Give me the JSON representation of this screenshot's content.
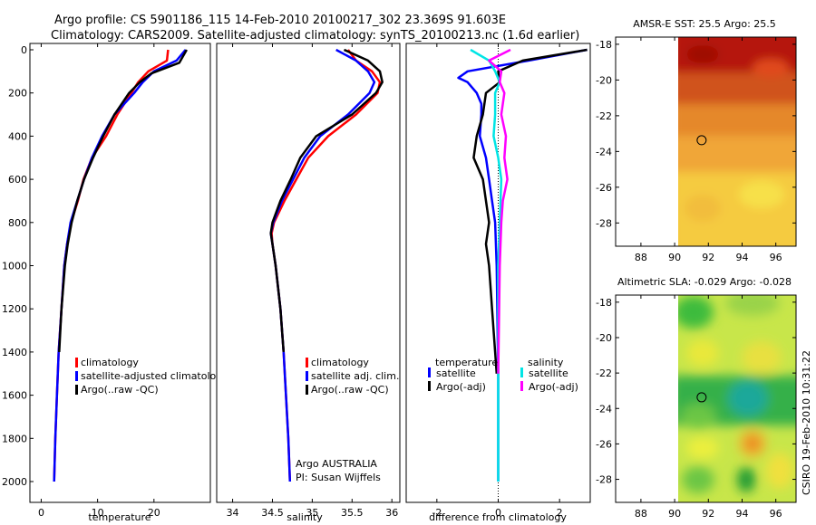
{
  "title_line1": "Argo profile: CS 5901186_115 14-Feb-2010 20100217_302 23.369S 91.603E",
  "title_line2": "Climatology: CARS2009. Satellite-adjusted climatology: synTS_20100213.nc (1.6d earlier)",
  "side_label": "CSIRO 19-Feb-2010 10:31:22",
  "colors": {
    "red": "#ff0000",
    "blue": "#0000ff",
    "black": "#000000",
    "cyan": "#00e5e5",
    "magenta": "#ff00ff"
  },
  "chart_data": [
    {
      "type": "line",
      "id": "temperature",
      "xlabel": "temperature",
      "ylabel": "",
      "xlim": [
        -2,
        30
      ],
      "ylim": [
        2060,
        0
      ],
      "xticks": [
        0,
        10,
        20
      ],
      "yticks": [
        0,
        200,
        400,
        600,
        800,
        1000,
        1200,
        1400,
        1600,
        1800,
        2000
      ],
      "legend": [
        "climatology",
        "satellite-adjusted climatolo",
        "Argo(..raw -QC)"
      ],
      "series": [
        {
          "name": "climatology",
          "color": "red",
          "depth": [
            0,
            50,
            100,
            150,
            200,
            300,
            400,
            500,
            600,
            700,
            800,
            900,
            1000,
            1200,
            1400,
            1600,
            1800,
            2000
          ],
          "values": [
            22.5,
            22.3,
            19.0,
            17.2,
            16.0,
            13.5,
            11.5,
            9.0,
            7.5,
            6.5,
            5.3,
            4.6,
            4.1,
            3.6,
            3.1,
            2.8,
            2.5,
            2.3
          ]
        },
        {
          "name": "satellite",
          "color": "blue",
          "depth": [
            0,
            50,
            100,
            150,
            200,
            300,
            400,
            500,
            600,
            700,
            800,
            900,
            1000,
            1200,
            1400,
            1600,
            1800,
            2000
          ],
          "values": [
            25.6,
            24.0,
            20.0,
            18.0,
            16.5,
            13.0,
            10.8,
            9.0,
            7.6,
            6.4,
            5.2,
            4.6,
            4.1,
            3.6,
            3.1,
            2.8,
            2.5,
            2.3
          ]
        },
        {
          "name": "argo",
          "color": "black",
          "depth": [
            0,
            60,
            110,
            150,
            200,
            300,
            400,
            500,
            600,
            700,
            800,
            900,
            1000,
            1200,
            1400
          ],
          "values": [
            25.8,
            24.5,
            19.5,
            17.5,
            15.6,
            13.0,
            11.0,
            9.2,
            7.6,
            6.4,
            5.4,
            4.7,
            4.2,
            3.6,
            3.2
          ]
        }
      ]
    },
    {
      "type": "line",
      "id": "salinity",
      "xlabel": "salinity",
      "xlim": [
        33.8,
        36.1
      ],
      "ylim": [
        2060,
        0
      ],
      "xticks": [
        34,
        34.5,
        35,
        35.5,
        36
      ],
      "legend": [
        "climatology",
        "satellite adj. clim.",
        "Argo(..raw -QC)"
      ],
      "note": [
        "Argo AUSTRALIA",
        "PI: Susan Wijffels"
      ],
      "series": [
        {
          "name": "climatology",
          "color": "red",
          "depth": [
            0,
            50,
            100,
            150,
            200,
            300,
            400,
            500,
            600,
            700,
            800,
            850,
            900,
            1000,
            1200,
            1400,
            1600,
            1800,
            2000
          ],
          "values": [
            35.45,
            35.55,
            35.75,
            35.85,
            35.82,
            35.55,
            35.2,
            34.95,
            34.8,
            34.65,
            34.52,
            34.49,
            34.5,
            34.54,
            34.6,
            34.64,
            34.67,
            34.7,
            34.72
          ]
        },
        {
          "name": "satellite",
          "color": "blue",
          "depth": [
            0,
            50,
            100,
            150,
            200,
            300,
            400,
            500,
            600,
            700,
            800,
            850,
            900,
            1000,
            1200,
            1400,
            1600,
            1800,
            2000
          ],
          "values": [
            35.3,
            35.55,
            35.7,
            35.78,
            35.72,
            35.45,
            35.1,
            34.9,
            34.76,
            34.62,
            34.51,
            34.48,
            34.5,
            34.54,
            34.6,
            34.64,
            34.67,
            34.7,
            34.72
          ]
        },
        {
          "name": "argo",
          "color": "black",
          "depth": [
            0,
            50,
            100,
            150,
            200,
            300,
            400,
            500,
            600,
            700,
            800,
            850,
            900,
            1000,
            1200,
            1400
          ],
          "values": [
            35.4,
            35.7,
            35.85,
            35.88,
            35.8,
            35.5,
            35.05,
            34.85,
            34.73,
            34.6,
            34.5,
            34.48,
            34.5,
            34.54,
            34.6,
            34.64
          ]
        }
      ]
    },
    {
      "type": "line",
      "id": "difference",
      "xlabel": "difference from climatology",
      "xlim": [
        -3,
        3
      ],
      "ylim": [
        2060,
        0
      ],
      "xticks": [
        -2,
        0,
        2
      ],
      "legend_temperature": {
        "title": "temperature",
        "items": [
          "satellite",
          "Argo(-adj)"
        ]
      },
      "legend_salinity": {
        "title": "salinity",
        "items": [
          "satellite",
          "Argo(-adj)"
        ]
      },
      "series": [
        {
          "name": "temperature satellite",
          "color": "blue",
          "depth": [
            0,
            50,
            100,
            130,
            150,
            200,
            250,
            300,
            400,
            500,
            600,
            700,
            800,
            1000,
            1500,
            2000
          ],
          "values": [
            2.9,
            1.0,
            -1.0,
            -1.3,
            -1.0,
            -0.7,
            -0.55,
            -0.55,
            -0.6,
            -0.4,
            -0.3,
            -0.2,
            -0.1,
            -0.05,
            0,
            0
          ]
        },
        {
          "name": "temperature argo",
          "color": "black",
          "depth": [
            0,
            50,
            100,
            150,
            200,
            300,
            400,
            500,
            600,
            700,
            800,
            900,
            1000,
            1200,
            1400,
            1500
          ],
          "values": [
            2.9,
            0.8,
            0,
            0.05,
            -0.4,
            -0.5,
            -0.7,
            -0.8,
            -0.5,
            -0.4,
            -0.3,
            -0.4,
            -0.3,
            -0.2,
            -0.1,
            -0.05
          ]
        },
        {
          "name": "salinity satellite",
          "color": "cyan",
          "depth": [
            0,
            50,
            100,
            150,
            200,
            300,
            400,
            500,
            600,
            800,
            1000,
            1500,
            2000
          ],
          "values": [
            -0.9,
            -0.3,
            -0.1,
            0.05,
            -0.1,
            -0.1,
            -0.15,
            0,
            0.1,
            0.05,
            0,
            0,
            0
          ]
        },
        {
          "name": "salinity argo",
          "color": "magenta",
          "depth": [
            0,
            50,
            100,
            150,
            200,
            300,
            400,
            500,
            600,
            700,
            800,
            1000,
            1500
          ],
          "values": [
            0.4,
            -0.3,
            0.1,
            0.05,
            0.2,
            0.1,
            0.25,
            0.2,
            0.3,
            0.15,
            0.1,
            0.05,
            0
          ]
        }
      ]
    },
    {
      "type": "heatmap",
      "id": "sst",
      "title": "AMSR-E SST: 25.5 Argo: 25.5",
      "xlim": [
        86.5,
        97.2
      ],
      "ylim": [
        -29.3,
        -17.6
      ],
      "xticks": [
        88,
        90,
        92,
        94,
        96
      ],
      "yticks": [
        -18,
        -20,
        -22,
        -24,
        -26,
        -28
      ],
      "data_lon_start": 90,
      "marker": {
        "lon": 91.6,
        "lat": -23.37
      }
    },
    {
      "type": "heatmap",
      "id": "sla",
      "title": "Altimetric SLA: -0.029 Argo: -0.028",
      "xlim": [
        86.5,
        97.2
      ],
      "ylim": [
        -29.3,
        -17.6
      ],
      "xticks": [
        88,
        90,
        92,
        94,
        96
      ],
      "yticks": [
        -18,
        -20,
        -22,
        -24,
        -26,
        -28
      ],
      "data_lon_start": 90,
      "marker": {
        "lon": 91.6,
        "lat": -23.37
      }
    }
  ]
}
